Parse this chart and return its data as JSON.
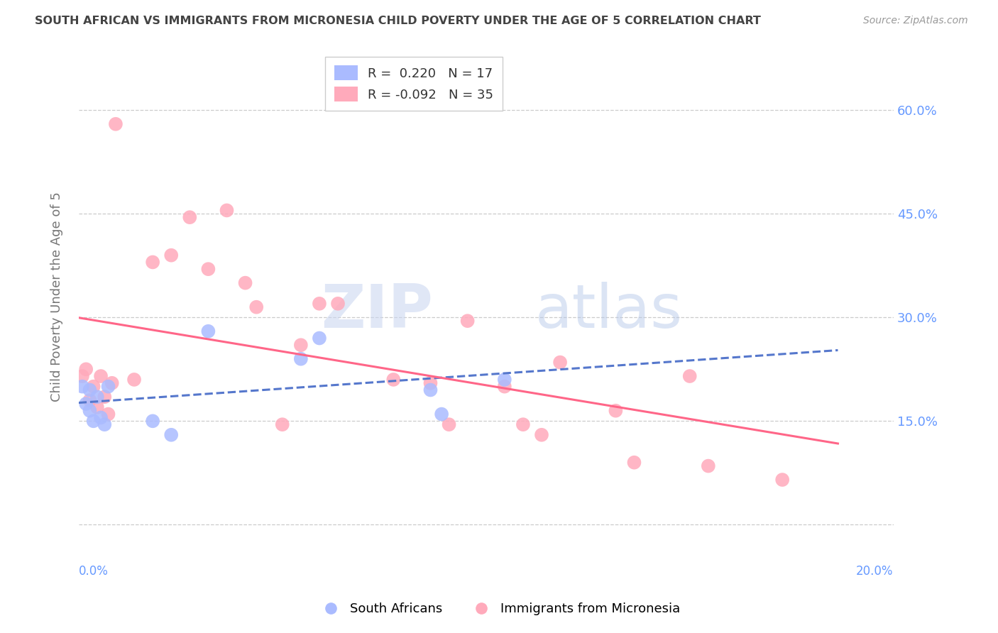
{
  "title": "SOUTH AFRICAN VS IMMIGRANTS FROM MICRONESIA CHILD POVERTY UNDER THE AGE OF 5 CORRELATION CHART",
  "source": "Source: ZipAtlas.com",
  "ylabel": "Child Poverty Under the Age of 5",
  "xlim": [
    0.0,
    0.22
  ],
  "ylim": [
    -0.02,
    0.68
  ],
  "ytick_vals": [
    0.0,
    0.15,
    0.3,
    0.45,
    0.6
  ],
  "ytick_labels": [
    "",
    "15.0%",
    "30.0%",
    "45.0%",
    "60.0%"
  ],
  "south_african_x": [
    0.001,
    0.002,
    0.003,
    0.003,
    0.004,
    0.005,
    0.006,
    0.007,
    0.008,
    0.02,
    0.025,
    0.035,
    0.06,
    0.065,
    0.095,
    0.098,
    0.115
  ],
  "south_african_y": [
    0.2,
    0.175,
    0.195,
    0.165,
    0.15,
    0.185,
    0.155,
    0.145,
    0.2,
    0.15,
    0.13,
    0.28,
    0.24,
    0.27,
    0.195,
    0.16,
    0.21
  ],
  "micronesia_x": [
    0.001,
    0.002,
    0.003,
    0.004,
    0.005,
    0.006,
    0.007,
    0.008,
    0.009,
    0.01,
    0.015,
    0.02,
    0.025,
    0.03,
    0.035,
    0.04,
    0.045,
    0.048,
    0.055,
    0.06,
    0.065,
    0.07,
    0.085,
    0.095,
    0.1,
    0.105,
    0.115,
    0.12,
    0.125,
    0.13,
    0.145,
    0.15,
    0.165,
    0.17,
    0.19
  ],
  "micronesia_y": [
    0.215,
    0.225,
    0.18,
    0.2,
    0.17,
    0.215,
    0.185,
    0.16,
    0.205,
    0.58,
    0.21,
    0.38,
    0.39,
    0.445,
    0.37,
    0.455,
    0.35,
    0.315,
    0.145,
    0.26,
    0.32,
    0.32,
    0.21,
    0.205,
    0.145,
    0.295,
    0.2,
    0.145,
    0.13,
    0.235,
    0.165,
    0.09,
    0.215,
    0.085,
    0.065
  ],
  "sa_R": 0.22,
  "sa_N": 17,
  "mi_R": -0.092,
  "mi_N": 35,
  "sa_color": "#aabbff",
  "mi_color": "#ffaabb",
  "sa_line_color": "#5577cc",
  "mi_line_color": "#ff6688",
  "background_color": "#ffffff",
  "grid_color": "#cccccc",
  "title_color": "#444444",
  "right_axis_color": "#6699ff",
  "legend_sa_label": "South Africans",
  "legend_mi_label": "Immigrants from Micronesia",
  "watermark_zip": "ZIP",
  "watermark_atlas": "atlas"
}
